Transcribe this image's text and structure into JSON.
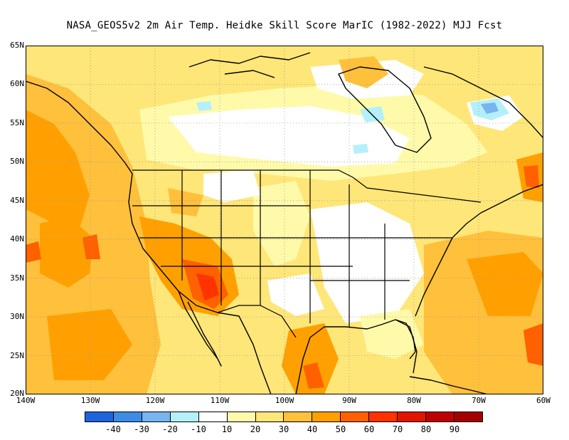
{
  "title": "NASA_GEOS5v2  2m Air Temp. Heidke Skill Score MarIC (1982-2022) MJJ Fcst",
  "lat_labels": [
    "65N",
    "60N",
    "55N",
    "50N",
    "45N",
    "40N",
    "35N",
    "30N",
    "25N",
    "20N"
  ],
  "lon_labels": [
    "140W",
    "130W",
    "120W",
    "110W",
    "100W",
    "90W",
    "80W",
    "70W",
    "60W"
  ],
  "colorbar": {
    "colors": [
      "#1e64dc",
      "#3c8ce6",
      "#78b4f0",
      "#b4f0fa",
      "#ffffff",
      "#fffaaa",
      "#ffe678",
      "#ffc03c",
      "#ffa000",
      "#ff6000",
      "#ff3200",
      "#e11400",
      "#c00000",
      "#a50000"
    ],
    "labels": [
      "-40",
      "-30",
      "-20",
      "-10",
      "10",
      "20",
      "30",
      "40",
      "50",
      "60",
      "70",
      "80",
      "90"
    ]
  },
  "map_colors": {
    "white": "#ffffff",
    "light_yellow": "#fffaaa",
    "yellow": "#ffe678",
    "light_orange": "#ffc03c",
    "orange": "#ffa000",
    "dark_orange": "#ff6000",
    "red_orange": "#ff3200",
    "light_blue": "#b4f0fa",
    "blue": "#78b4f0"
  }
}
